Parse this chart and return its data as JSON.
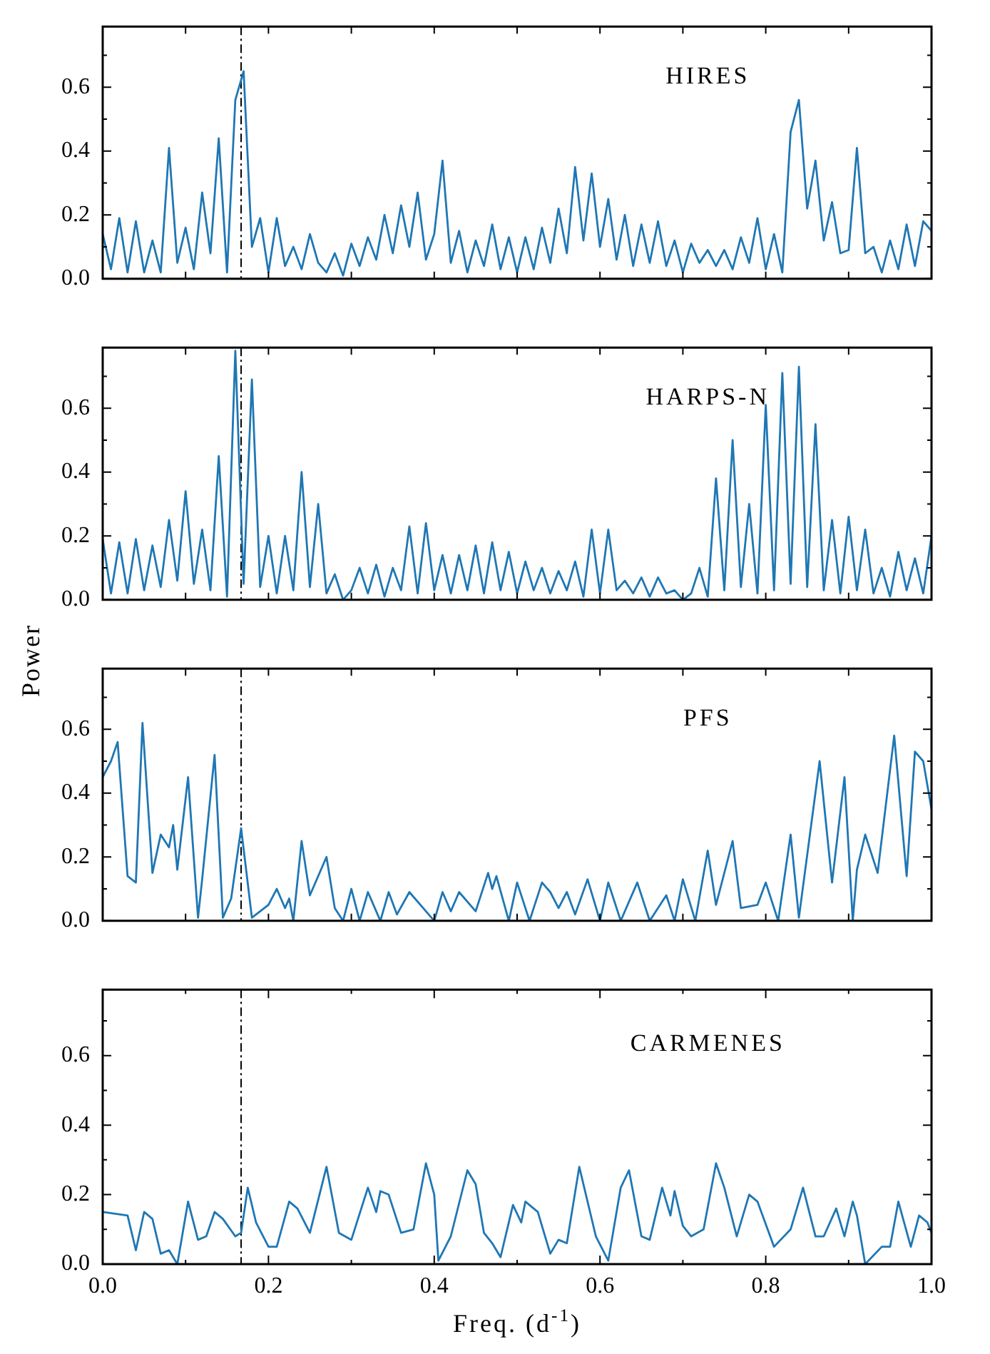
{
  "chart_data": [
    {
      "type": "line",
      "annotations": [
        "HIRES"
      ],
      "xlim": [
        0,
        1
      ],
      "ylim": [
        0,
        0.79
      ],
      "tick_labels": "y",
      "xticks": [
        {
          "value": 0,
          "label": null
        },
        {
          "value": 0.1,
          "label": null
        },
        {
          "value": 0.2,
          "label": null
        },
        {
          "value": 0.3,
          "label": null
        },
        {
          "value": 0.4,
          "label": null
        },
        {
          "value": 0.5,
          "label": null
        },
        {
          "value": 0.6,
          "label": null
        },
        {
          "value": 0.7,
          "label": null
        },
        {
          "value": 0.8,
          "label": null
        },
        {
          "value": 0.9,
          "label": null
        },
        {
          "value": 1,
          "label": null
        }
      ],
      "yticks": [
        {
          "value": 0,
          "label": "0.0"
        },
        {
          "value": 0.1,
          "label": null
        },
        {
          "value": 0.2,
          "label": "0.2"
        },
        {
          "value": 0.3,
          "label": null
        },
        {
          "value": 0.4,
          "label": "0.4"
        },
        {
          "value": 0.5,
          "label": null
        },
        {
          "value": 0.6,
          "label": "0.6"
        },
        {
          "value": 0.7,
          "label": null
        }
      ],
      "ref_lines": [
        {
          "axis": "x",
          "value": 0.167,
          "color": "#000000"
        }
      ],
      "series": [
        {
          "color": "#1f77b4",
          "x": [
            0,
            0.01,
            0.02,
            0.03,
            0.04,
            0.05,
            0.06,
            0.07,
            0.08,
            0.09,
            0.1,
            0.11,
            0.12,
            0.13,
            0.14,
            0.15,
            0.16,
            0.17,
            0.18,
            0.19,
            0.2,
            0.21,
            0.22,
            0.23,
            0.24,
            0.25,
            0.26,
            0.27,
            0.28,
            0.29,
            0.3,
            0.31,
            0.32,
            0.33,
            0.34,
            0.35,
            0.36,
            0.37,
            0.38,
            0.39,
            0.4,
            0.41,
            0.42,
            0.43,
            0.44,
            0.45,
            0.46,
            0.47,
            0.48,
            0.49,
            0.5,
            0.51,
            0.52,
            0.53,
            0.54,
            0.55,
            0.56,
            0.57,
            0.58,
            0.59,
            0.6,
            0.61,
            0.62,
            0.63,
            0.64,
            0.65,
            0.66,
            0.67,
            0.68,
            0.69,
            0.7,
            0.71,
            0.72,
            0.73,
            0.74,
            0.75,
            0.76,
            0.77,
            0.78,
            0.79,
            0.8,
            0.81,
            0.82,
            0.83,
            0.84,
            0.85,
            0.86,
            0.87,
            0.88,
            0.89,
            0.9,
            0.91,
            0.92,
            0.93,
            0.94,
            0.95,
            0.96,
            0.97,
            0.98,
            0.99,
            1
          ],
          "values": [
            0.14,
            0.03,
            0.19,
            0.02,
            0.18,
            0.02,
            0.12,
            0.02,
            0.41,
            0.05,
            0.16,
            0.03,
            0.27,
            0.08,
            0.44,
            0.02,
            0.56,
            0.65,
            0.1,
            0.19,
            0.02,
            0.19,
            0.04,
            0.1,
            0.03,
            0.14,
            0.05,
            0.02,
            0.08,
            0.01,
            0.11,
            0.04,
            0.13,
            0.06,
            0.2,
            0.08,
            0.23,
            0.1,
            0.27,
            0.06,
            0.14,
            0.37,
            0.05,
            0.15,
            0.02,
            0.12,
            0.04,
            0.17,
            0.03,
            0.13,
            0.02,
            0.13,
            0.03,
            0.16,
            0.05,
            0.22,
            0.08,
            0.35,
            0.12,
            0.33,
            0.1,
            0.25,
            0.06,
            0.2,
            0.04,
            0.17,
            0.05,
            0.18,
            0.04,
            0.12,
            0.02,
            0.11,
            0.05,
            0.09,
            0.04,
            0.09,
            0.03,
            0.13,
            0.05,
            0.19,
            0.03,
            0.14,
            0.02,
            0.46,
            0.56,
            0.22,
            0.37,
            0.12,
            0.24,
            0.08,
            0.09,
            0.41,
            0.08,
            0.1,
            0.02,
            0.12,
            0.03,
            0.17,
            0.04,
            0.18,
            0.15
          ]
        }
      ]
    },
    {
      "type": "line",
      "annotations": [
        "HARPS-N"
      ],
      "ylabel": "Power",
      "xlim": [
        0,
        1
      ],
      "ylim": [
        0,
        0.79
      ],
      "tick_labels": "y",
      "xticks": [
        {
          "value": 0,
          "label": null
        },
        {
          "value": 0.1,
          "label": null
        },
        {
          "value": 0.2,
          "label": null
        },
        {
          "value": 0.3,
          "label": null
        },
        {
          "value": 0.4,
          "label": null
        },
        {
          "value": 0.5,
          "label": null
        },
        {
          "value": 0.6,
          "label": null
        },
        {
          "value": 0.7,
          "label": null
        },
        {
          "value": 0.8,
          "label": null
        },
        {
          "value": 0.9,
          "label": null
        },
        {
          "value": 1,
          "label": null
        }
      ],
      "yticks": [
        {
          "value": 0,
          "label": "0.0"
        },
        {
          "value": 0.1,
          "label": null
        },
        {
          "value": 0.2,
          "label": "0.2"
        },
        {
          "value": 0.3,
          "label": null
        },
        {
          "value": 0.4,
          "label": "0.4"
        },
        {
          "value": 0.5,
          "label": null
        },
        {
          "value": 0.6,
          "label": "0.6"
        },
        {
          "value": 0.7,
          "label": null
        }
      ],
      "ref_lines": [
        {
          "axis": "x",
          "value": 0.167,
          "color": "#000000"
        }
      ],
      "series": [
        {
          "color": "#1f77b4",
          "x": [
            0,
            0.01,
            0.02,
            0.03,
            0.04,
            0.05,
            0.06,
            0.07,
            0.08,
            0.09,
            0.1,
            0.11,
            0.12,
            0.13,
            0.14,
            0.15,
            0.16,
            0.17,
            0.18,
            0.19,
            0.2,
            0.21,
            0.22,
            0.23,
            0.24,
            0.25,
            0.26,
            0.27,
            0.28,
            0.29,
            0.3,
            0.31,
            0.32,
            0.33,
            0.34,
            0.35,
            0.36,
            0.37,
            0.38,
            0.39,
            0.4,
            0.41,
            0.42,
            0.43,
            0.44,
            0.45,
            0.46,
            0.47,
            0.48,
            0.49,
            0.5,
            0.51,
            0.52,
            0.53,
            0.54,
            0.55,
            0.56,
            0.57,
            0.58,
            0.59,
            0.6,
            0.61,
            0.62,
            0.63,
            0.64,
            0.65,
            0.66,
            0.67,
            0.68,
            0.69,
            0.7,
            0.71,
            0.72,
            0.73,
            0.74,
            0.75,
            0.76,
            0.77,
            0.78,
            0.79,
            0.8,
            0.81,
            0.82,
            0.83,
            0.84,
            0.85,
            0.86,
            0.87,
            0.88,
            0.89,
            0.9,
            0.91,
            0.92,
            0.93,
            0.94,
            0.95,
            0.96,
            0.97,
            0.98,
            0.99,
            1
          ],
          "values": [
            0.19,
            0.02,
            0.18,
            0.02,
            0.19,
            0.03,
            0.17,
            0.04,
            0.25,
            0.06,
            0.34,
            0.05,
            0.22,
            0.03,
            0.45,
            0.01,
            0.78,
            0.05,
            0.69,
            0.04,
            0.2,
            0.02,
            0.2,
            0.03,
            0.4,
            0.04,
            0.3,
            0.02,
            0.08,
            0,
            0.03,
            0.1,
            0.02,
            0.11,
            0.01,
            0.1,
            0.03,
            0.23,
            0.02,
            0.24,
            0.03,
            0.14,
            0.02,
            0.14,
            0.03,
            0.17,
            0.02,
            0.18,
            0.03,
            0.15,
            0.02,
            0.12,
            0.03,
            0.1,
            0.02,
            0.09,
            0.03,
            0.12,
            0.01,
            0.22,
            0.02,
            0.22,
            0.03,
            0.06,
            0.02,
            0.07,
            0.01,
            0.07,
            0.02,
            0.03,
            0,
            0.02,
            0.1,
            0.01,
            0.38,
            0.03,
            0.5,
            0.04,
            0.3,
            0.02,
            0.61,
            0.03,
            0.71,
            0.05,
            0.73,
            0.04,
            0.55,
            0.03,
            0.25,
            0.02,
            0.26,
            0.03,
            0.22,
            0.02,
            0.1,
            0.01,
            0.15,
            0.03,
            0.13,
            0.02,
            0.2
          ]
        }
      ]
    },
    {
      "type": "line",
      "annotations": [
        "PFS"
      ],
      "xlim": [
        0,
        1
      ],
      "ylim": [
        0,
        0.79
      ],
      "tick_labels": "y",
      "xticks": [
        {
          "value": 0,
          "label": null
        },
        {
          "value": 0.1,
          "label": null
        },
        {
          "value": 0.2,
          "label": null
        },
        {
          "value": 0.3,
          "label": null
        },
        {
          "value": 0.4,
          "label": null
        },
        {
          "value": 0.5,
          "label": null
        },
        {
          "value": 0.6,
          "label": null
        },
        {
          "value": 0.7,
          "label": null
        },
        {
          "value": 0.8,
          "label": null
        },
        {
          "value": 0.9,
          "label": null
        },
        {
          "value": 1,
          "label": null
        }
      ],
      "yticks": [
        {
          "value": 0,
          "label": "0.0"
        },
        {
          "value": 0.1,
          "label": null
        },
        {
          "value": 0.2,
          "label": "0.2"
        },
        {
          "value": 0.3,
          "label": null
        },
        {
          "value": 0.4,
          "label": "0.4"
        },
        {
          "value": 0.5,
          "label": null
        },
        {
          "value": 0.6,
          "label": "0.6"
        },
        {
          "value": 0.7,
          "label": null
        }
      ],
      "ref_lines": [
        {
          "axis": "x",
          "value": 0.167,
          "color": "#000000"
        }
      ],
      "series": [
        {
          "color": "#1f77b4",
          "x": [
            0,
            0.01,
            0.018,
            0.03,
            0.04,
            0.048,
            0.06,
            0.07,
            0.08,
            0.085,
            0.09,
            0.103,
            0.115,
            0.12,
            0.135,
            0.145,
            0.155,
            0.167,
            0.18,
            0.2,
            0.21,
            0.22,
            0.225,
            0.23,
            0.24,
            0.25,
            0.27,
            0.28,
            0.29,
            0.3,
            0.31,
            0.32,
            0.335,
            0.345,
            0.355,
            0.37,
            0.4,
            0.41,
            0.42,
            0.43,
            0.45,
            0.465,
            0.47,
            0.475,
            0.49,
            0.5,
            0.515,
            0.53,
            0.54,
            0.55,
            0.56,
            0.57,
            0.585,
            0.6,
            0.61,
            0.625,
            0.645,
            0.66,
            0.68,
            0.69,
            0.7,
            0.715,
            0.73,
            0.74,
            0.76,
            0.77,
            0.79,
            0.8,
            0.815,
            0.83,
            0.84,
            0.865,
            0.88,
            0.895,
            0.905,
            0.91,
            0.92,
            0.935,
            0.955,
            0.97,
            0.98,
            0.99,
            1
          ],
          "values": [
            0.45,
            0.5,
            0.56,
            0.14,
            0.12,
            0.62,
            0.15,
            0.27,
            0.23,
            0.3,
            0.16,
            0.45,
            0.01,
            0.13,
            0.52,
            0.01,
            0.07,
            0.29,
            0.01,
            0.05,
            0.1,
            0.04,
            0.07,
            0,
            0.25,
            0.08,
            0.2,
            0.04,
            0,
            0.1,
            0,
            0.09,
            0,
            0.09,
            0.02,
            0.09,
            0,
            0.09,
            0.03,
            0.09,
            0.03,
            0.15,
            0.1,
            0.14,
            0,
            0.12,
            0,
            0.12,
            0.09,
            0.04,
            0.09,
            0.02,
            0.13,
            0,
            0.12,
            0,
            0.12,
            0,
            0.08,
            0,
            0.13,
            0,
            0.22,
            0.05,
            0.25,
            0.04,
            0.05,
            0.12,
            0,
            0.27,
            0.01,
            0.5,
            0.12,
            0.45,
            0,
            0.16,
            0.27,
            0.15,
            0.58,
            0.14,
            0.53,
            0.5,
            0.35
          ]
        }
      ]
    },
    {
      "type": "line",
      "annotations": [
        "CARMENES"
      ],
      "xlabel": "Freq. (d$^{-1}$)",
      "xlim": [
        0,
        1
      ],
      "ylim": [
        0,
        0.79
      ],
      "xticks": [
        {
          "value": 0,
          "label": "0.0"
        },
        {
          "value": 0.1,
          "label": null
        },
        {
          "value": 0.2,
          "label": "0.2"
        },
        {
          "value": 0.3,
          "label": null
        },
        {
          "value": 0.4,
          "label": "0.4"
        },
        {
          "value": 0.5,
          "label": null
        },
        {
          "value": 0.6,
          "label": "0.6"
        },
        {
          "value": 0.7,
          "label": null
        },
        {
          "value": 0.8,
          "label": "0.8"
        },
        {
          "value": 0.9,
          "label": null
        },
        {
          "value": 1,
          "label": "1.0"
        }
      ],
      "yticks": [
        {
          "value": 0,
          "label": "0.0"
        },
        {
          "value": 0.1,
          "label": null
        },
        {
          "value": 0.2,
          "label": "0.2"
        },
        {
          "value": 0.3,
          "label": null
        },
        {
          "value": 0.4,
          "label": "0.4"
        },
        {
          "value": 0.5,
          "label": null
        },
        {
          "value": 0.6,
          "label": "0.6"
        },
        {
          "value": 0.7,
          "label": null
        }
      ],
      "ref_lines": [
        {
          "axis": "x",
          "value": 0.167,
          "color": "#000000"
        }
      ],
      "series": [
        {
          "color": "#1f77b4",
          "x": [
            0,
            0.03,
            0.04,
            0.05,
            0.06,
            0.07,
            0.08,
            0.09,
            0.103,
            0.115,
            0.125,
            0.135,
            0.145,
            0.16,
            0.167,
            0.175,
            0.185,
            0.2,
            0.21,
            0.225,
            0.235,
            0.25,
            0.27,
            0.285,
            0.3,
            0.32,
            0.33,
            0.335,
            0.345,
            0.36,
            0.375,
            0.39,
            0.4,
            0.405,
            0.42,
            0.44,
            0.45,
            0.46,
            0.47,
            0.48,
            0.495,
            0.505,
            0.51,
            0.525,
            0.54,
            0.55,
            0.56,
            0.575,
            0.585,
            0.595,
            0.61,
            0.625,
            0.635,
            0.65,
            0.66,
            0.675,
            0.685,
            0.69,
            0.7,
            0.71,
            0.725,
            0.74,
            0.75,
            0.765,
            0.78,
            0.79,
            0.81,
            0.83,
            0.845,
            0.86,
            0.87,
            0.885,
            0.895,
            0.905,
            0.91,
            0.92,
            0.94,
            0.95,
            0.96,
            0.975,
            0.985,
            0.995,
            1
          ],
          "values": [
            0.15,
            0.14,
            0.04,
            0.15,
            0.13,
            0.03,
            0.04,
            0,
            0.18,
            0.07,
            0.08,
            0.15,
            0.13,
            0.08,
            0.09,
            0.22,
            0.12,
            0.05,
            0.05,
            0.18,
            0.16,
            0.09,
            0.28,
            0.09,
            0.07,
            0.22,
            0.15,
            0.21,
            0.2,
            0.09,
            0.1,
            0.29,
            0.2,
            0.01,
            0.08,
            0.27,
            0.23,
            0.09,
            0.06,
            0.02,
            0.17,
            0.12,
            0.18,
            0.15,
            0.03,
            0.07,
            0.06,
            0.28,
            0.18,
            0.08,
            0.01,
            0.22,
            0.27,
            0.08,
            0.07,
            0.22,
            0.14,
            0.21,
            0.11,
            0.08,
            0.1,
            0.29,
            0.22,
            0.08,
            0.2,
            0.18,
            0.05,
            0.1,
            0.22,
            0.08,
            0.08,
            0.16,
            0.08,
            0.18,
            0.14,
            0,
            0.05,
            0.05,
            0.18,
            0.05,
            0.14,
            0.12,
            0.09
          ]
        }
      ]
    }
  ]
}
